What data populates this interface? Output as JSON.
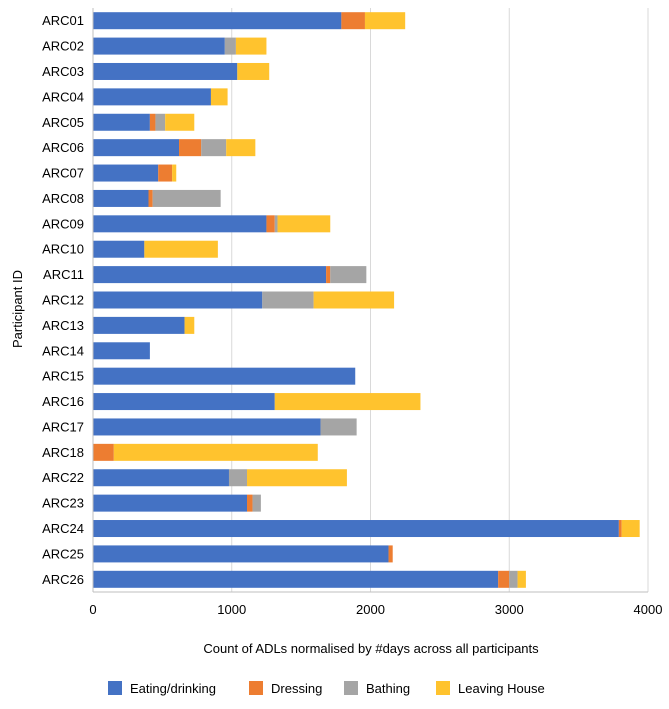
{
  "chart_data": {
    "type": "bar",
    "orientation": "horizontal",
    "stacked": true,
    "title": "",
    "xlabel": "Count of ADLs normalised by #days across all participants",
    "ylabel": "Participant ID",
    "xlim": [
      0,
      4000
    ],
    "xticks": [
      0,
      1000,
      2000,
      3000,
      4000
    ],
    "grid": true,
    "legend_position": "bottom",
    "categories": [
      "ARC01",
      "ARC02",
      "ARC03",
      "ARC04",
      "ARC05",
      "ARC06",
      "ARC07",
      "ARC08",
      "ARC09",
      "ARC10",
      "ARC11",
      "ARC12",
      "ARC13",
      "ARC14",
      "ARC15",
      "ARC16",
      "ARC17",
      "ARC18",
      "ARC22",
      "ARC23",
      "ARC24",
      "ARC25",
      "ARC26"
    ],
    "series": [
      {
        "name": "Eating/drinking",
        "color": "#4472C4",
        "values": [
          1790,
          950,
          1040,
          850,
          410,
          620,
          470,
          400,
          1250,
          370,
          1680,
          1220,
          660,
          410,
          1890,
          1310,
          1640,
          0,
          980,
          1110,
          3790,
          2130,
          2920
        ]
      },
      {
        "name": "Dressing",
        "color": "#ED7D31",
        "values": [
          170,
          0,
          0,
          0,
          40,
          160,
          100,
          30,
          60,
          0,
          30,
          0,
          0,
          0,
          0,
          0,
          0,
          150,
          0,
          40,
          20,
          30,
          80
        ]
      },
      {
        "name": "Bathing",
        "color": "#A5A5A5",
        "values": [
          0,
          80,
          0,
          0,
          70,
          180,
          0,
          490,
          20,
          0,
          260,
          370,
          0,
          0,
          0,
          0,
          260,
          0,
          130,
          60,
          0,
          0,
          60
        ]
      },
      {
        "name": "Leaving House",
        "color": "#FFC32E",
        "values": [
          290,
          220,
          230,
          120,
          210,
          210,
          30,
          0,
          380,
          530,
          0,
          580,
          70,
          0,
          0,
          1050,
          0,
          1470,
          720,
          0,
          130,
          0,
          60
        ]
      }
    ]
  }
}
